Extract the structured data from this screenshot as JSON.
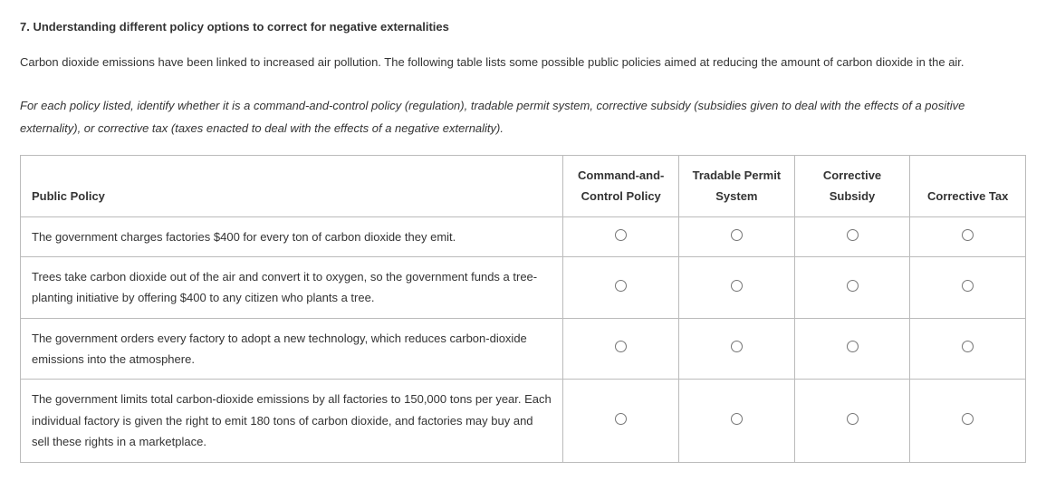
{
  "heading": "7. Understanding different policy options to correct for negative externalities",
  "intro": "Carbon dioxide emissions have been linked to increased air pollution. The following table lists some possible public policies aimed at reducing the amount of carbon dioxide in the air.",
  "instructions": "For each policy listed, identify whether it is a command-and-control policy (regulation), tradable permit system, corrective subsidy (subsidies given to deal with the effects of a positive externality), or corrective tax (taxes enacted to deal with the effects of a negative externality).",
  "table": {
    "headers": {
      "policy": "Public Policy",
      "col1": "Command-and-Control Policy",
      "col2": "Tradable Permit System",
      "col3": "Corrective Subsidy",
      "col4": "Corrective Tax"
    },
    "rows": [
      {
        "policy": "The government charges factories $400 for every ton of carbon dioxide they emit."
      },
      {
        "policy": "Trees take carbon dioxide out of the air and convert it to oxygen, so the government funds a tree-planting initiative by offering $400 to any citizen who plants a tree."
      },
      {
        "policy": "The government orders every factory to adopt a new technology, which reduces carbon-dioxide emissions into the atmosphere."
      },
      {
        "policy": "The government limits total carbon-dioxide emissions by all factories to 150,000 tons per year. Each individual factory is given the right to emit 180 tons of carbon dioxide, and factories may buy and sell these rights in a marketplace."
      }
    ]
  }
}
